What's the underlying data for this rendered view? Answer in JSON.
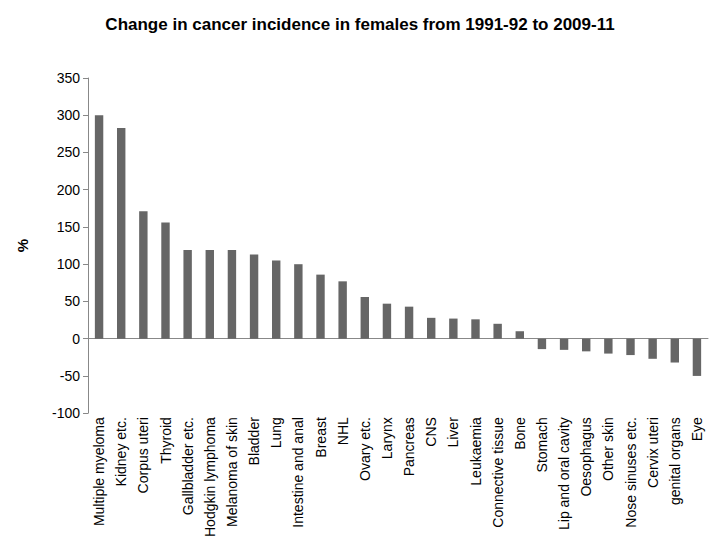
{
  "chart_data": {
    "type": "bar",
    "title": "Change in cancer incidence in females from 1991-92 to 2009-11",
    "y_label": "%",
    "categories": [
      "Multiple myeloma",
      "Kidney etc.",
      "Corpus uteri",
      "Thyroid",
      "Gallbladder etc.",
      "Hodgkin lymphoma",
      "Melanoma of skin",
      "Bladder",
      "Lung",
      "Intestine and anal",
      "Breast",
      "NHL",
      "Ovary etc.",
      "Larynx",
      "Pancreas",
      "CNS",
      "Liver",
      "Leukaemia",
      "Connective tissue",
      "Bone",
      "Stomach",
      "Lip and oral cavity",
      "Oesophagus",
      "Other skin",
      "Nose sinuses etc.",
      "Cervix uteri",
      "genital organs",
      "Eye"
    ],
    "values": [
      300,
      283,
      171,
      156,
      119,
      119,
      119,
      113,
      105,
      100,
      86,
      77,
      56,
      47,
      43,
      28,
      27,
      26,
      20,
      10,
      -14,
      -15,
      -17,
      -20,
      -22,
      -27,
      -32,
      -50
    ],
    "color": "#666666",
    "ylim": [
      -100,
      350
    ],
    "yticks": [
      -100,
      -50,
      0,
      50,
      100,
      150,
      200,
      250,
      300,
      350
    ],
    "grid": false,
    "data_labels": false
  }
}
